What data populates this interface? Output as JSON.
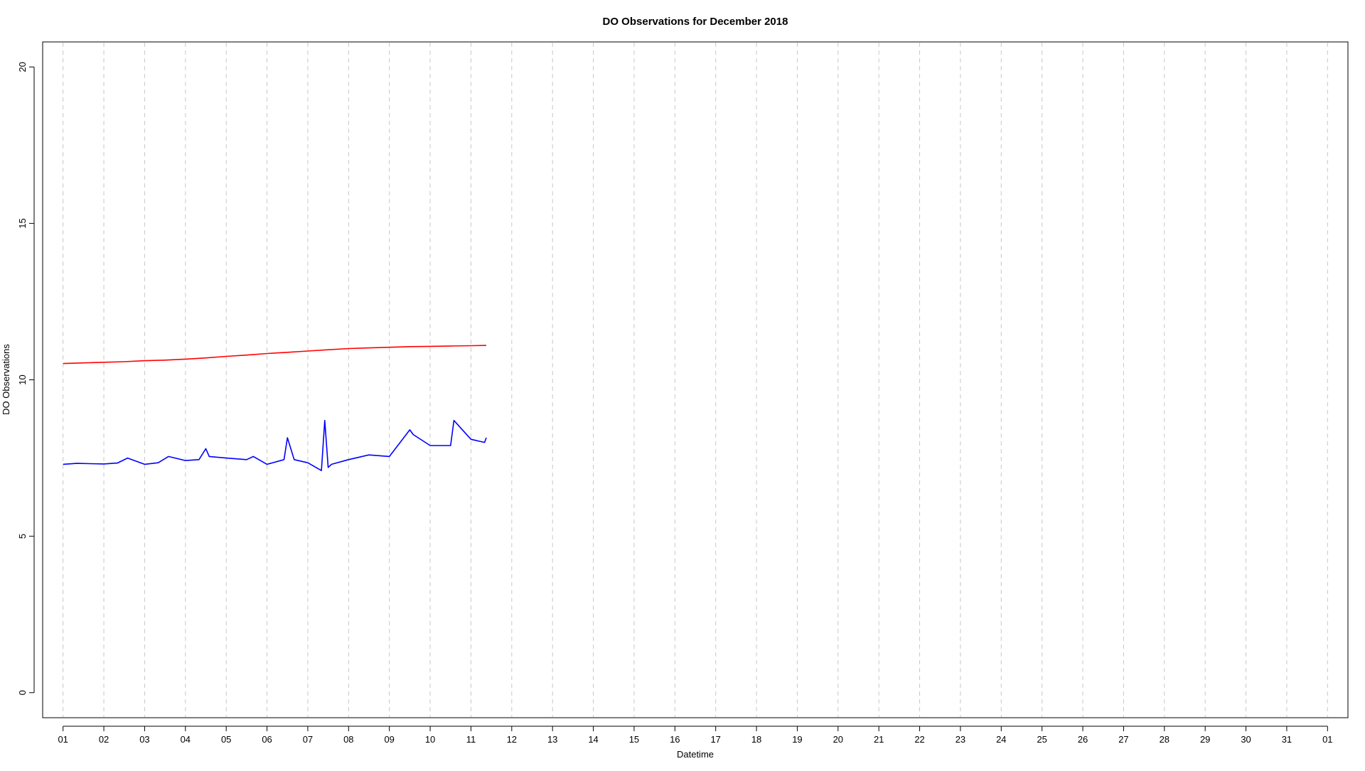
{
  "chart_data": {
    "type": "line",
    "title": "DO Observations for December 2018",
    "xlabel": "Datetime",
    "ylabel": "DO Observations",
    "x_tick_labels": [
      "01",
      "02",
      "03",
      "04",
      "05",
      "06",
      "07",
      "08",
      "09",
      "10",
      "11",
      "12",
      "13",
      "14",
      "15",
      "16",
      "17",
      "18",
      "19",
      "20",
      "21",
      "22",
      "23",
      "24",
      "25",
      "26",
      "27",
      "28",
      "29",
      "30",
      "31",
      "01"
    ],
    "x_tick_dates": [
      "2018-12-01",
      "2018-12-02",
      "2018-12-03",
      "2018-12-04",
      "2018-12-05",
      "2018-12-06",
      "2018-12-07",
      "2018-12-08",
      "2018-12-09",
      "2018-12-10",
      "2018-12-11",
      "2018-12-12",
      "2018-12-13",
      "2018-12-14",
      "2018-12-15",
      "2018-12-16",
      "2018-12-17",
      "2018-12-18",
      "2018-12-19",
      "2018-12-20",
      "2018-12-21",
      "2018-12-22",
      "2018-12-23",
      "2018-12-24",
      "2018-12-25",
      "2018-12-26",
      "2018-12-27",
      "2018-12-28",
      "2018-12-29",
      "2018-12-30",
      "2018-12-31",
      "2019-01-01"
    ],
    "xlim": [
      "2018-11-30 12:00",
      "2019-01-01 12:00"
    ],
    "y_ticks": [
      0,
      5,
      10,
      15,
      20
    ],
    "ylim": [
      -0.8,
      20.8
    ],
    "grid": "vertical dashed at each day",
    "legend": "none",
    "series": [
      {
        "color": "#ff0000",
        "x": [
          "2018-12-01 00:00",
          "2018-12-01 12:00",
          "2018-12-02 00:00",
          "2018-12-02 12:00",
          "2018-12-03 00:00",
          "2018-12-03 12:00",
          "2018-12-04 00:00",
          "2018-12-04 12:00",
          "2018-12-05 00:00",
          "2018-12-05 12:00",
          "2018-12-06 00:00",
          "2018-12-06 12:00",
          "2018-12-07 00:00",
          "2018-12-07 12:00",
          "2018-12-08 00:00",
          "2018-12-08 12:00",
          "2018-12-09 00:00",
          "2018-12-09 12:00",
          "2018-12-10 00:00",
          "2018-12-10 12:00",
          "2018-12-11 00:00",
          "2018-12-11 09:00"
        ],
        "y": [
          10.52,
          10.54,
          10.56,
          10.58,
          10.61,
          10.63,
          10.66,
          10.7,
          10.75,
          10.79,
          10.84,
          10.88,
          10.92,
          10.96,
          11.0,
          11.02,
          11.04,
          11.06,
          11.07,
          11.08,
          11.09,
          11.1
        ]
      },
      {
        "color": "#0000ff",
        "x": [
          "2018-12-01 00:00",
          "2018-12-01 08:00",
          "2018-12-01 16:00",
          "2018-12-02 00:00",
          "2018-12-02 08:00",
          "2018-12-02 14:00",
          "2018-12-03 00:00",
          "2018-12-03 08:00",
          "2018-12-03 14:00",
          "2018-12-04 00:00",
          "2018-12-04 08:00",
          "2018-12-04 12:00",
          "2018-12-04 14:00",
          "2018-12-05 00:00",
          "2018-12-05 12:00",
          "2018-12-05 16:00",
          "2018-12-06 00:00",
          "2018-12-06 10:00",
          "2018-12-06 12:00",
          "2018-12-06 16:00",
          "2018-12-07 00:00",
          "2018-12-07 08:00",
          "2018-12-07 10:00",
          "2018-12-07 12:00",
          "2018-12-07 14:00",
          "2018-12-08 00:00",
          "2018-12-08 12:00",
          "2018-12-09 00:00",
          "2018-12-09 12:00",
          "2018-12-09 14:00",
          "2018-12-10 00:00",
          "2018-12-10 12:00",
          "2018-12-10 14:00",
          "2018-12-11 00:00",
          "2018-12-11 08:00",
          "2018-12-11 09:00"
        ],
        "y": [
          7.3,
          7.33,
          7.32,
          7.31,
          7.34,
          7.5,
          7.3,
          7.35,
          7.55,
          7.42,
          7.45,
          7.8,
          7.55,
          7.5,
          7.45,
          7.55,
          7.3,
          7.45,
          8.15,
          7.45,
          7.35,
          7.1,
          8.7,
          7.2,
          7.3,
          7.45,
          7.6,
          7.55,
          8.4,
          8.25,
          7.9,
          7.9,
          8.7,
          8.1,
          8.0,
          8.15
        ]
      }
    ]
  }
}
